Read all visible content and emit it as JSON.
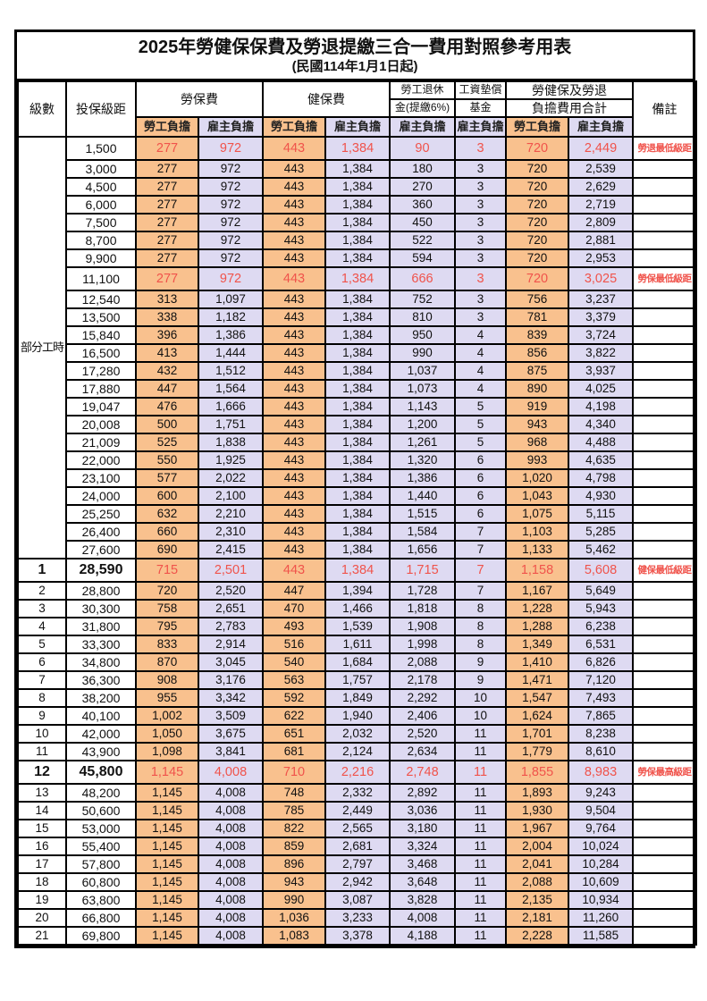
{
  "title": "2025年勞健保保費及勞退提繳三合一費用對照參考用表",
  "subtitle": "(民國114年1月1日起)",
  "header": {
    "col_level": "級數",
    "col_bracket": "投保級距",
    "group_labor": "勞保費",
    "group_health": "健保費",
    "group_pension": [
      "勞工退休",
      "金(提繳6%)"
    ],
    "group_fund": [
      "工資墊償",
      "基金"
    ],
    "group_total": [
      "勞健保及勞退",
      "負擔費用合計"
    ],
    "col_remark": "備註",
    "sub_employee": "勞工負擔",
    "sub_employer": "雇主負擔"
  },
  "part_time": {
    "label": "部分工時",
    "span": 23
  },
  "colors": {
    "employee_bg": "#f9c18e",
    "employer_bg": "#dedaf2",
    "highlight_red": "#f0534b",
    "border": "#000000"
  },
  "rows": [
    {
      "level": "",
      "bracket": "1,500",
      "li_e": "277",
      "li_r": "972",
      "hi_e": "443",
      "hi_r": "1,384",
      "pension": "90",
      "fund": "3",
      "tot_e": "720",
      "tot_r": "2,449",
      "remark": "勞退最低級距",
      "hl": true
    },
    {
      "level": "",
      "bracket": "3,000",
      "li_e": "277",
      "li_r": "972",
      "hi_e": "443",
      "hi_r": "1,384",
      "pension": "180",
      "fund": "3",
      "tot_e": "720",
      "tot_r": "2,539",
      "remark": "",
      "hl": false
    },
    {
      "level": "",
      "bracket": "4,500",
      "li_e": "277",
      "li_r": "972",
      "hi_e": "443",
      "hi_r": "1,384",
      "pension": "270",
      "fund": "3",
      "tot_e": "720",
      "tot_r": "2,629",
      "remark": "",
      "hl": false
    },
    {
      "level": "",
      "bracket": "6,000",
      "li_e": "277",
      "li_r": "972",
      "hi_e": "443",
      "hi_r": "1,384",
      "pension": "360",
      "fund": "3",
      "tot_e": "720",
      "tot_r": "2,719",
      "remark": "",
      "hl": false
    },
    {
      "level": "",
      "bracket": "7,500",
      "li_e": "277",
      "li_r": "972",
      "hi_e": "443",
      "hi_r": "1,384",
      "pension": "450",
      "fund": "3",
      "tot_e": "720",
      "tot_r": "2,809",
      "remark": "",
      "hl": false
    },
    {
      "level": "",
      "bracket": "8,700",
      "li_e": "277",
      "li_r": "972",
      "hi_e": "443",
      "hi_r": "1,384",
      "pension": "522",
      "fund": "3",
      "tot_e": "720",
      "tot_r": "2,881",
      "remark": "",
      "hl": false
    },
    {
      "level": "",
      "bracket": "9,900",
      "li_e": "277",
      "li_r": "972",
      "hi_e": "443",
      "hi_r": "1,384",
      "pension": "594",
      "fund": "3",
      "tot_e": "720",
      "tot_r": "2,953",
      "remark": "",
      "hl": false
    },
    {
      "level": "",
      "bracket": "11,100",
      "li_e": "277",
      "li_r": "972",
      "hi_e": "443",
      "hi_r": "1,384",
      "pension": "666",
      "fund": "3",
      "tot_e": "720",
      "tot_r": "3,025",
      "remark": "勞保最低級距",
      "hl": true
    },
    {
      "level": "",
      "bracket": "12,540",
      "li_e": "313",
      "li_r": "1,097",
      "hi_e": "443",
      "hi_r": "1,384",
      "pension": "752",
      "fund": "3",
      "tot_e": "756",
      "tot_r": "3,237",
      "remark": "",
      "hl": false
    },
    {
      "level": "",
      "bracket": "13,500",
      "li_e": "338",
      "li_r": "1,182",
      "hi_e": "443",
      "hi_r": "1,384",
      "pension": "810",
      "fund": "3",
      "tot_e": "781",
      "tot_r": "3,379",
      "remark": "",
      "hl": false
    },
    {
      "level": "",
      "bracket": "15,840",
      "li_e": "396",
      "li_r": "1,386",
      "hi_e": "443",
      "hi_r": "1,384",
      "pension": "950",
      "fund": "4",
      "tot_e": "839",
      "tot_r": "3,724",
      "remark": "",
      "hl": false
    },
    {
      "level": "",
      "bracket": "16,500",
      "li_e": "413",
      "li_r": "1,444",
      "hi_e": "443",
      "hi_r": "1,384",
      "pension": "990",
      "fund": "4",
      "tot_e": "856",
      "tot_r": "3,822",
      "remark": "",
      "hl": false
    },
    {
      "level": "",
      "bracket": "17,280",
      "li_e": "432",
      "li_r": "1,512",
      "hi_e": "443",
      "hi_r": "1,384",
      "pension": "1,037",
      "fund": "4",
      "tot_e": "875",
      "tot_r": "3,937",
      "remark": "",
      "hl": false
    },
    {
      "level": "",
      "bracket": "17,880",
      "li_e": "447",
      "li_r": "1,564",
      "hi_e": "443",
      "hi_r": "1,384",
      "pension": "1,073",
      "fund": "4",
      "tot_e": "890",
      "tot_r": "4,025",
      "remark": "",
      "hl": false
    },
    {
      "level": "",
      "bracket": "19,047",
      "li_e": "476",
      "li_r": "1,666",
      "hi_e": "443",
      "hi_r": "1,384",
      "pension": "1,143",
      "fund": "5",
      "tot_e": "919",
      "tot_r": "4,198",
      "remark": "",
      "hl": false
    },
    {
      "level": "",
      "bracket": "20,008",
      "li_e": "500",
      "li_r": "1,751",
      "hi_e": "443",
      "hi_r": "1,384",
      "pension": "1,200",
      "fund": "5",
      "tot_e": "943",
      "tot_r": "4,340",
      "remark": "",
      "hl": false
    },
    {
      "level": "",
      "bracket": "21,009",
      "li_e": "525",
      "li_r": "1,838",
      "hi_e": "443",
      "hi_r": "1,384",
      "pension": "1,261",
      "fund": "5",
      "tot_e": "968",
      "tot_r": "4,488",
      "remark": "",
      "hl": false
    },
    {
      "level": "",
      "bracket": "22,000",
      "li_e": "550",
      "li_r": "1,925",
      "hi_e": "443",
      "hi_r": "1,384",
      "pension": "1,320",
      "fund": "6",
      "tot_e": "993",
      "tot_r": "4,635",
      "remark": "",
      "hl": false
    },
    {
      "level": "",
      "bracket": "23,100",
      "li_e": "577",
      "li_r": "2,022",
      "hi_e": "443",
      "hi_r": "1,384",
      "pension": "1,386",
      "fund": "6",
      "tot_e": "1,020",
      "tot_r": "4,798",
      "remark": "",
      "hl": false
    },
    {
      "level": "",
      "bracket": "24,000",
      "li_e": "600",
      "li_r": "2,100",
      "hi_e": "443",
      "hi_r": "1,384",
      "pension": "1,440",
      "fund": "6",
      "tot_e": "1,043",
      "tot_r": "4,930",
      "remark": "",
      "hl": false
    },
    {
      "level": "",
      "bracket": "25,250",
      "li_e": "632",
      "li_r": "2,210",
      "hi_e": "443",
      "hi_r": "1,384",
      "pension": "1,515",
      "fund": "6",
      "tot_e": "1,075",
      "tot_r": "5,115",
      "remark": "",
      "hl": false
    },
    {
      "level": "",
      "bracket": "26,400",
      "li_e": "660",
      "li_r": "2,310",
      "hi_e": "443",
      "hi_r": "1,384",
      "pension": "1,584",
      "fund": "7",
      "tot_e": "1,103",
      "tot_r": "5,285",
      "remark": "",
      "hl": false
    },
    {
      "level": "",
      "bracket": "27,600",
      "li_e": "690",
      "li_r": "2,415",
      "hi_e": "443",
      "hi_r": "1,384",
      "pension": "1,656",
      "fund": "7",
      "tot_e": "1,133",
      "tot_r": "5,462",
      "remark": "",
      "hl": false
    },
    {
      "level": "1",
      "bracket": "28,590",
      "li_e": "715",
      "li_r": "2,501",
      "hi_e": "443",
      "hi_r": "1,384",
      "pension": "1,715",
      "fund": "7",
      "tot_e": "1,158",
      "tot_r": "5,608",
      "remark": "健保最低級距",
      "hl": true
    },
    {
      "level": "2",
      "bracket": "28,800",
      "li_e": "720",
      "li_r": "2,520",
      "hi_e": "447",
      "hi_r": "1,394",
      "pension": "1,728",
      "fund": "7",
      "tot_e": "1,167",
      "tot_r": "5,649",
      "remark": "",
      "hl": false
    },
    {
      "level": "3",
      "bracket": "30,300",
      "li_e": "758",
      "li_r": "2,651",
      "hi_e": "470",
      "hi_r": "1,466",
      "pension": "1,818",
      "fund": "8",
      "tot_e": "1,228",
      "tot_r": "5,943",
      "remark": "",
      "hl": false
    },
    {
      "level": "4",
      "bracket": "31,800",
      "li_e": "795",
      "li_r": "2,783",
      "hi_e": "493",
      "hi_r": "1,539",
      "pension": "1,908",
      "fund": "8",
      "tot_e": "1,288",
      "tot_r": "6,238",
      "remark": "",
      "hl": false
    },
    {
      "level": "5",
      "bracket": "33,300",
      "li_e": "833",
      "li_r": "2,914",
      "hi_e": "516",
      "hi_r": "1,611",
      "pension": "1,998",
      "fund": "8",
      "tot_e": "1,349",
      "tot_r": "6,531",
      "remark": "",
      "hl": false
    },
    {
      "level": "6",
      "bracket": "34,800",
      "li_e": "870",
      "li_r": "3,045",
      "hi_e": "540",
      "hi_r": "1,684",
      "pension": "2,088",
      "fund": "9",
      "tot_e": "1,410",
      "tot_r": "6,826",
      "remark": "",
      "hl": false
    },
    {
      "level": "7",
      "bracket": "36,300",
      "li_e": "908",
      "li_r": "3,176",
      "hi_e": "563",
      "hi_r": "1,757",
      "pension": "2,178",
      "fund": "9",
      "tot_e": "1,471",
      "tot_r": "7,120",
      "remark": "",
      "hl": false
    },
    {
      "level": "8",
      "bracket": "38,200",
      "li_e": "955",
      "li_r": "3,342",
      "hi_e": "592",
      "hi_r": "1,849",
      "pension": "2,292",
      "fund": "10",
      "tot_e": "1,547",
      "tot_r": "7,493",
      "remark": "",
      "hl": false
    },
    {
      "level": "9",
      "bracket": "40,100",
      "li_e": "1,002",
      "li_r": "3,509",
      "hi_e": "622",
      "hi_r": "1,940",
      "pension": "2,406",
      "fund": "10",
      "tot_e": "1,624",
      "tot_r": "7,865",
      "remark": "",
      "hl": false
    },
    {
      "level": "10",
      "bracket": "42,000",
      "li_e": "1,050",
      "li_r": "3,675",
      "hi_e": "651",
      "hi_r": "2,032",
      "pension": "2,520",
      "fund": "11",
      "tot_e": "1,701",
      "tot_r": "8,238",
      "remark": "",
      "hl": false
    },
    {
      "level": "11",
      "bracket": "43,900",
      "li_e": "1,098",
      "li_r": "3,841",
      "hi_e": "681",
      "hi_r": "2,124",
      "pension": "2,634",
      "fund": "11",
      "tot_e": "1,779",
      "tot_r": "8,610",
      "remark": "",
      "hl": false
    },
    {
      "level": "12",
      "bracket": "45,800",
      "li_e": "1,145",
      "li_r": "4,008",
      "hi_e": "710",
      "hi_r": "2,216",
      "pension": "2,748",
      "fund": "11",
      "tot_e": "1,855",
      "tot_r": "8,983",
      "remark": "勞保最高級距",
      "hl": true
    },
    {
      "level": "13",
      "bracket": "48,200",
      "li_e": "1,145",
      "li_r": "4,008",
      "hi_e": "748",
      "hi_r": "2,332",
      "pension": "2,892",
      "fund": "11",
      "tot_e": "1,893",
      "tot_r": "9,243",
      "remark": "",
      "hl": false
    },
    {
      "level": "14",
      "bracket": "50,600",
      "li_e": "1,145",
      "li_r": "4,008",
      "hi_e": "785",
      "hi_r": "2,449",
      "pension": "3,036",
      "fund": "11",
      "tot_e": "1,930",
      "tot_r": "9,504",
      "remark": "",
      "hl": false
    },
    {
      "level": "15",
      "bracket": "53,000",
      "li_e": "1,145",
      "li_r": "4,008",
      "hi_e": "822",
      "hi_r": "2,565",
      "pension": "3,180",
      "fund": "11",
      "tot_e": "1,967",
      "tot_r": "9,764",
      "remark": "",
      "hl": false
    },
    {
      "level": "16",
      "bracket": "55,400",
      "li_e": "1,145",
      "li_r": "4,008",
      "hi_e": "859",
      "hi_r": "2,681",
      "pension": "3,324",
      "fund": "11",
      "tot_e": "2,004",
      "tot_r": "10,024",
      "remark": "",
      "hl": false
    },
    {
      "level": "17",
      "bracket": "57,800",
      "li_e": "1,145",
      "li_r": "4,008",
      "hi_e": "896",
      "hi_r": "2,797",
      "pension": "3,468",
      "fund": "11",
      "tot_e": "2,041",
      "tot_r": "10,284",
      "remark": "",
      "hl": false
    },
    {
      "level": "18",
      "bracket": "60,800",
      "li_e": "1,145",
      "li_r": "4,008",
      "hi_e": "943",
      "hi_r": "2,942",
      "pension": "3,648",
      "fund": "11",
      "tot_e": "2,088",
      "tot_r": "10,609",
      "remark": "",
      "hl": false
    },
    {
      "level": "19",
      "bracket": "63,800",
      "li_e": "1,145",
      "li_r": "4,008",
      "hi_e": "990",
      "hi_r": "3,087",
      "pension": "3,828",
      "fund": "11",
      "tot_e": "2,135",
      "tot_r": "10,934",
      "remark": "",
      "hl": false
    },
    {
      "level": "20",
      "bracket": "66,800",
      "li_e": "1,145",
      "li_r": "4,008",
      "hi_e": "1,036",
      "hi_r": "3,233",
      "pension": "4,008",
      "fund": "11",
      "tot_e": "2,181",
      "tot_r": "11,260",
      "remark": "",
      "hl": false
    },
    {
      "level": "21",
      "bracket": "69,800",
      "li_e": "1,145",
      "li_r": "4,008",
      "hi_e": "1,083",
      "hi_r": "3,378",
      "pension": "4,188",
      "fund": "11",
      "tot_e": "2,228",
      "tot_r": "11,585",
      "remark": "",
      "hl": false
    }
  ]
}
